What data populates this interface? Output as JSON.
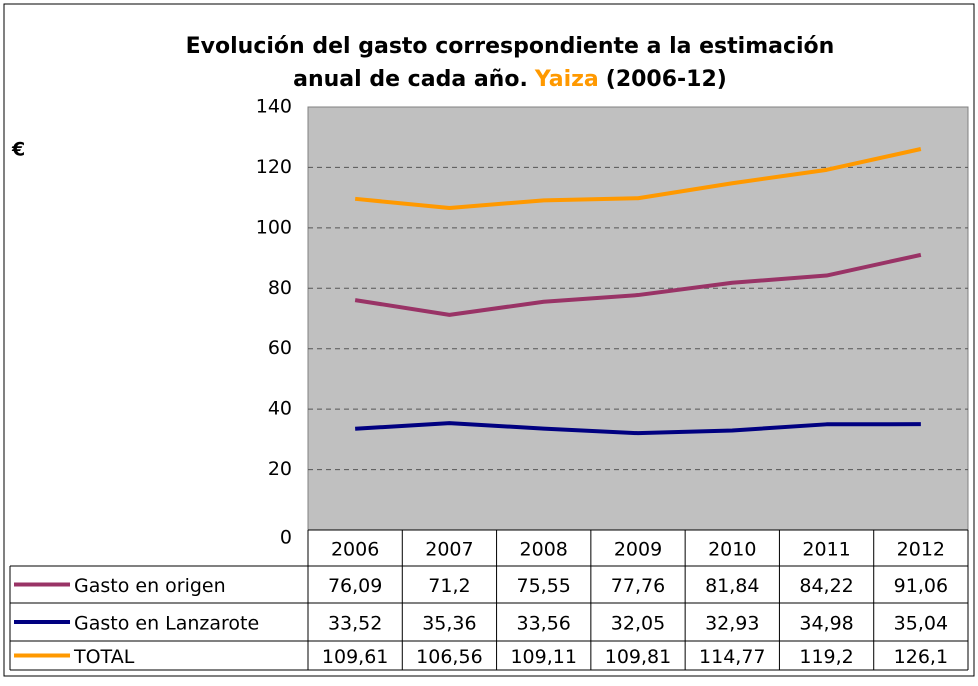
{
  "chart_data": {
    "type": "line",
    "title": {
      "line1": "Evolución del gasto correspondiente a la estimación",
      "line2": "anual de cada año.",
      "highlight": "Yaiza",
      "suffix": "(2006-12)"
    },
    "y_label": "€",
    "categories": [
      "2006",
      "2007",
      "2008",
      "2009",
      "2010",
      "2011",
      "2012"
    ],
    "series": [
      {
        "name": "Gasto en origen",
        "color": "#993366",
        "values": [
          76.09,
          71.2,
          75.55,
          77.76,
          81.84,
          84.22,
          91.06
        ],
        "value_labels": [
          "76,09",
          "71,2",
          "75,55",
          "77,76",
          "81,84",
          "84,22",
          "91,06"
        ]
      },
      {
        "name": "Gasto en Lanzarote",
        "color": "#000080",
        "values": [
          33.52,
          35.36,
          33.56,
          32.05,
          32.93,
          34.98,
          35.04
        ],
        "value_labels": [
          "33,52",
          "35,36",
          "33,56",
          "32,05",
          "32,93",
          "34,98",
          "35,04"
        ]
      },
      {
        "name": "TOTAL",
        "color": "#ff9900",
        "values": [
          109.61,
          106.56,
          109.11,
          109.81,
          114.77,
          119.2,
          126.1
        ],
        "value_labels": [
          "109,61",
          "106,56",
          "109,11",
          "109,81",
          "114,77",
          "119,2",
          "126,1"
        ]
      }
    ],
    "ylim": [
      0,
      140
    ],
    "yticks": [
      0,
      20,
      40,
      60,
      80,
      100,
      120,
      140
    ],
    "grid": true,
    "plot_background": "#c0c0c0",
    "highlight_color": "#ff9900"
  }
}
